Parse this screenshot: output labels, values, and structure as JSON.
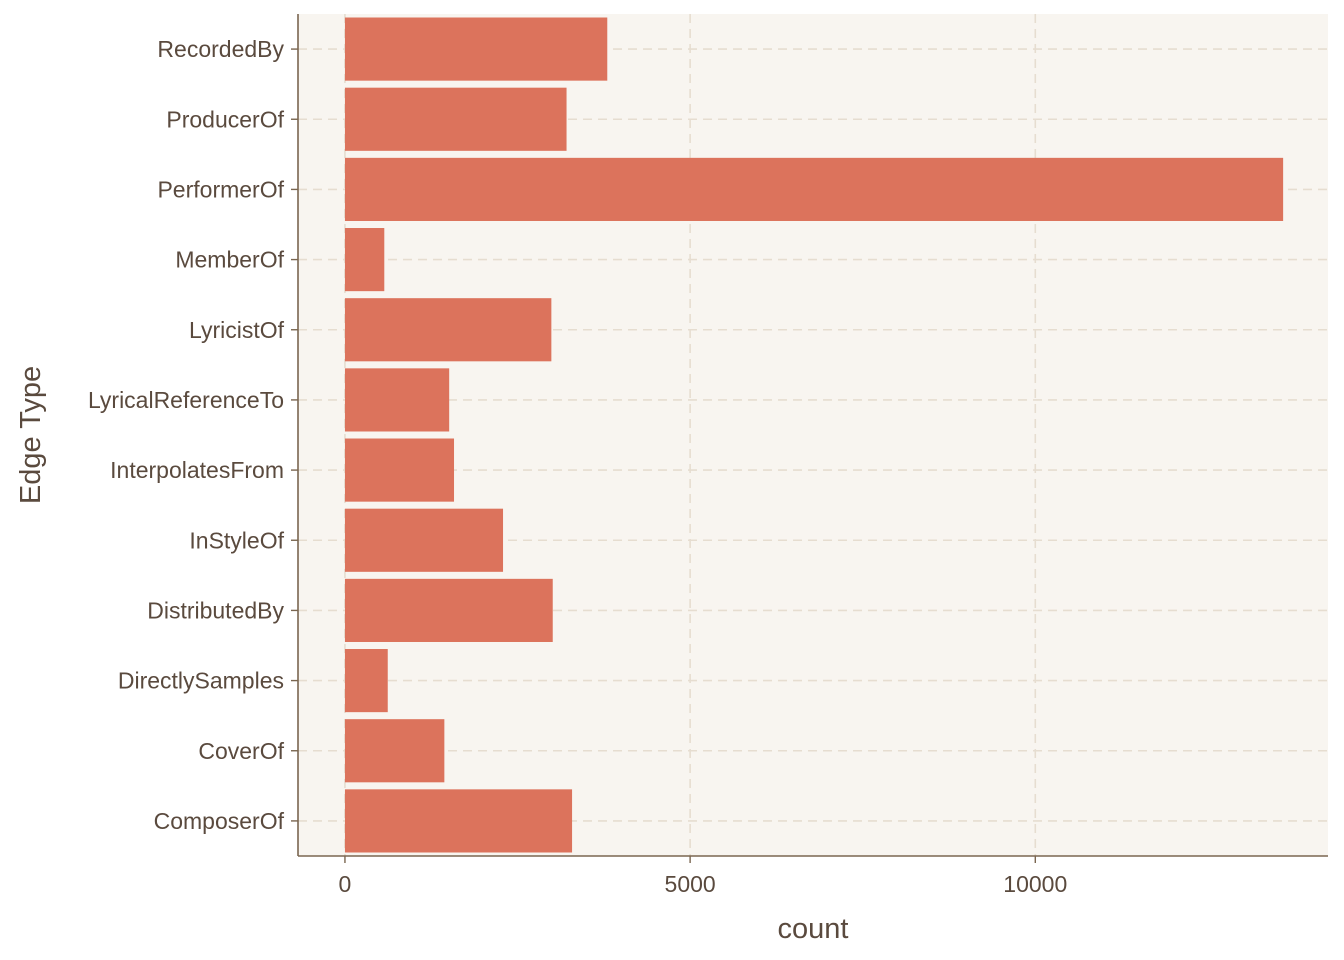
{
  "chart_data": {
    "type": "bar",
    "orientation": "horizontal",
    "title": "",
    "xlabel": "count",
    "ylabel": "Edge Type",
    "categories": [
      "ComposerOf",
      "CoverOf",
      "DirectlySamples",
      "DistributedBy",
      "InStyleOf",
      "InterpolatesFrom",
      "LyricalReferenceTo",
      "LyricistOf",
      "MemberOf",
      "PerformerOf",
      "ProducerOf",
      "RecordedBy"
    ],
    "values": [
      3290,
      1440,
      620,
      3010,
      2290,
      1580,
      1510,
      2990,
      570,
      13590,
      3210,
      3800
    ],
    "xlim": [
      -680,
      14240
    ],
    "xticks": [
      0,
      5000,
      10000
    ],
    "xtick_labels": [
      "0",
      "5000",
      "10000"
    ],
    "grid": true,
    "legend": "none",
    "colors": {
      "bar": "#dc735c",
      "panel": "#f8f5f0",
      "grid": "#e6ddd0",
      "axis": "#7a6650",
      "text": "#5a4a3e"
    }
  }
}
